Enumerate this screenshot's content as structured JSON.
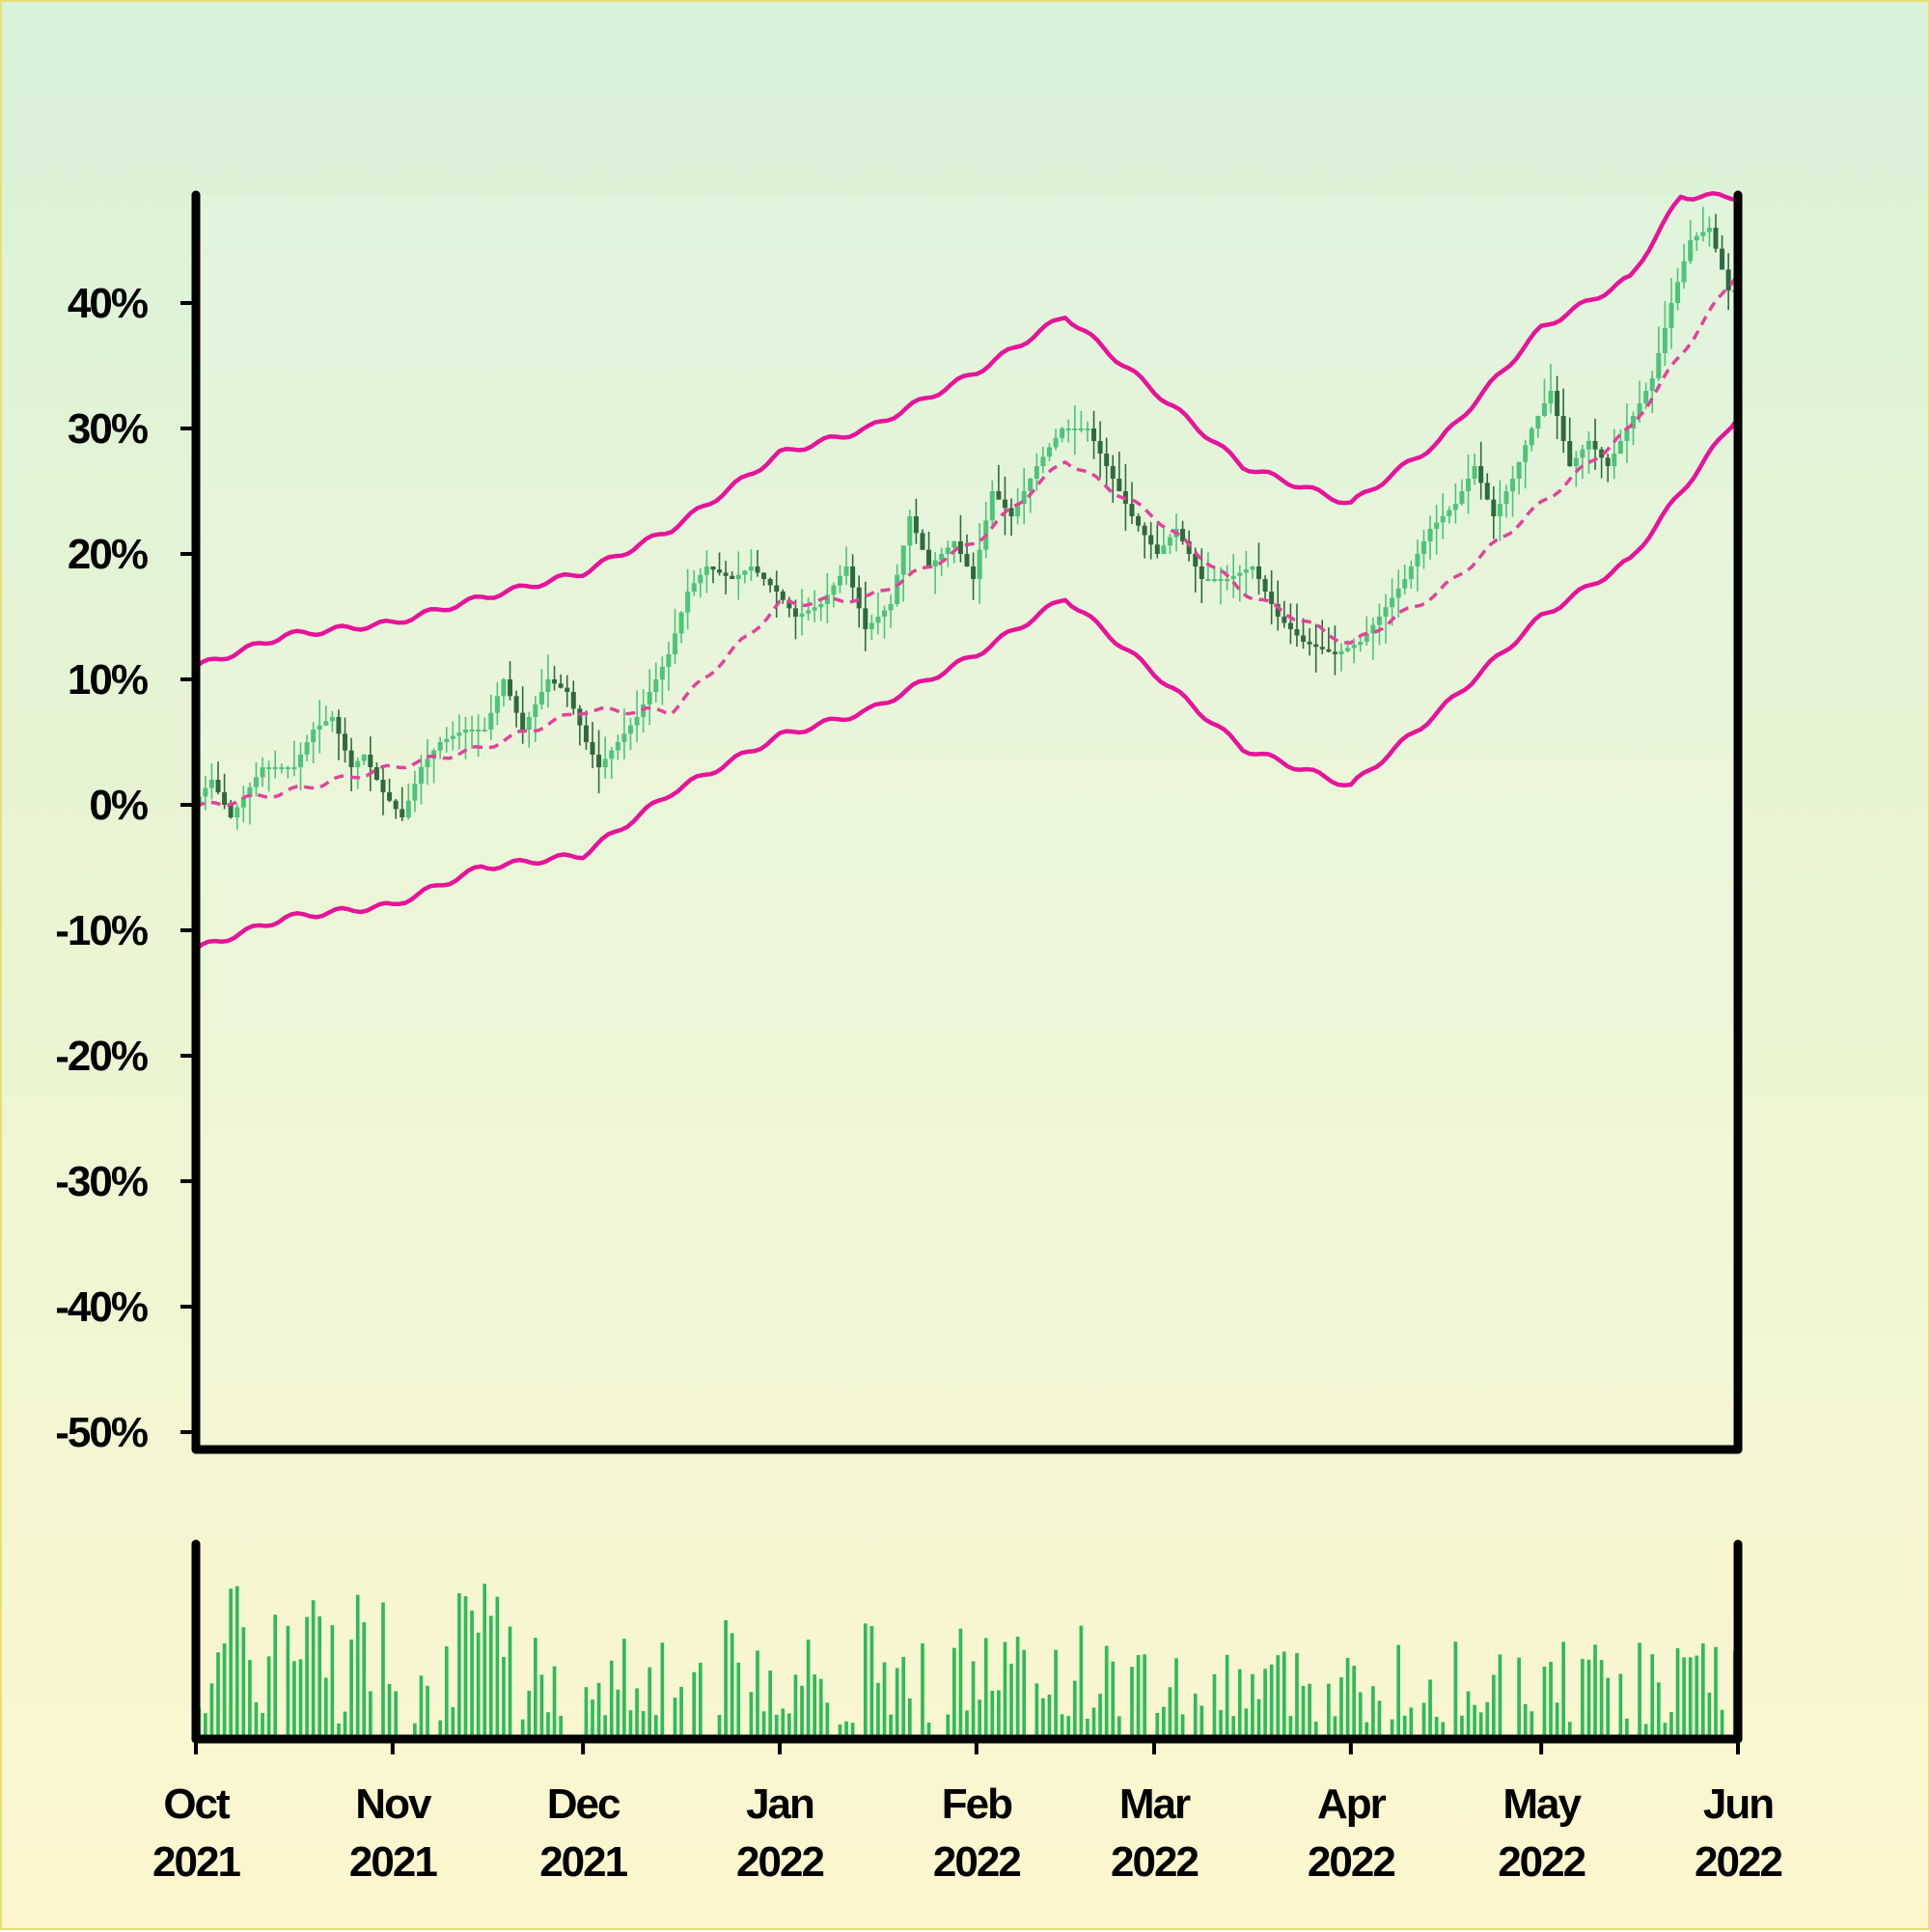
{
  "chart_data": {
    "type": "candlestick",
    "title": "",
    "xlabel": "",
    "ylabel": "",
    "ylim": [
      -50,
      50
    ],
    "y_unit": "%",
    "y_ticks": [
      "40%",
      "30%",
      "20%",
      "10%",
      "0%",
      "-10%",
      "-20%",
      "-30%",
      "-40%",
      "-50%"
    ],
    "y_tick_values": [
      40,
      30,
      20,
      10,
      0,
      -10,
      -20,
      -30,
      -40,
      -50
    ],
    "x_start": "2021-10-01",
    "x_end": "2022-06-01",
    "x_ticks": [
      {
        "date": "2021-10-01",
        "month": "Oct",
        "year": "2021"
      },
      {
        "date": "2021-11-01",
        "month": "Nov",
        "year": "2021"
      },
      {
        "date": "2021-12-01",
        "month": "Dec",
        "year": "2021"
      },
      {
        "date": "2022-01-01",
        "month": "Jan",
        "year": "2022"
      },
      {
        "date": "2022-02-01",
        "month": "Feb",
        "year": "2022"
      },
      {
        "date": "2022-03-01",
        "month": "Mar",
        "year": "2022"
      },
      {
        "date": "2022-04-01",
        "month": "Apr",
        "year": "2022"
      },
      {
        "date": "2022-05-01",
        "month": "May",
        "year": "2022"
      },
      {
        "date": "2022-06-01",
        "month": "Jun",
        "year": "2022"
      }
    ],
    "price_keypoints": [
      [
        "2021-10-01",
        0
      ],
      [
        "2021-10-04",
        2
      ],
      [
        "2021-10-07",
        -1
      ],
      [
        "2021-10-12",
        3
      ],
      [
        "2021-10-17",
        3
      ],
      [
        "2021-10-20",
        6
      ],
      [
        "2021-10-23",
        7
      ],
      [
        "2021-10-26",
        3
      ],
      [
        "2021-10-28",
        4
      ],
      [
        "2021-10-31",
        1
      ],
      [
        "2021-11-03",
        -1
      ],
      [
        "2021-11-06",
        3
      ],
      [
        "2021-11-09",
        5
      ],
      [
        "2021-11-13",
        6
      ],
      [
        "2021-11-16",
        6
      ],
      [
        "2021-11-19",
        10
      ],
      [
        "2021-11-22",
        6
      ],
      [
        "2021-11-26",
        10
      ],
      [
        "2021-11-29",
        9
      ],
      [
        "2021-12-02",
        5
      ],
      [
        "2021-12-04",
        3
      ],
      [
        "2021-12-07",
        5
      ],
      [
        "2021-12-10",
        7
      ],
      [
        "2021-12-15",
        12
      ],
      [
        "2021-12-18",
        17
      ],
      [
        "2021-12-21",
        19
      ],
      [
        "2021-12-25",
        18
      ],
      [
        "2021-12-28",
        19
      ],
      [
        "2022-01-01",
        17
      ],
      [
        "2022-01-04",
        15
      ],
      [
        "2022-01-08",
        16
      ],
      [
        "2022-01-12",
        19
      ],
      [
        "2022-01-15",
        14
      ],
      [
        "2022-01-19",
        16
      ],
      [
        "2022-01-22",
        23
      ],
      [
        "2022-01-25",
        19
      ],
      [
        "2022-01-29",
        21
      ],
      [
        "2022-02-01",
        18
      ],
      [
        "2022-02-04",
        25
      ],
      [
        "2022-02-07",
        23
      ],
      [
        "2022-02-11",
        27
      ],
      [
        "2022-02-15",
        30
      ],
      [
        "2022-02-19",
        30
      ],
      [
        "2022-02-22",
        27
      ],
      [
        "2022-02-26",
        23
      ],
      [
        "2022-03-02",
        20
      ],
      [
        "2022-03-05",
        22
      ],
      [
        "2022-03-09",
        18
      ],
      [
        "2022-03-13",
        18
      ],
      [
        "2022-03-17",
        19
      ],
      [
        "2022-03-21",
        15
      ],
      [
        "2022-03-25",
        13
      ],
      [
        "2022-03-30",
        12
      ],
      [
        "2022-04-03",
        13
      ],
      [
        "2022-04-06",
        15
      ],
      [
        "2022-04-10",
        18
      ],
      [
        "2022-04-14",
        22
      ],
      [
        "2022-04-18",
        24
      ],
      [
        "2022-04-21",
        27
      ],
      [
        "2022-04-24",
        23
      ],
      [
        "2022-04-27",
        26
      ],
      [
        "2022-04-30",
        30
      ],
      [
        "2022-05-03",
        33
      ],
      [
        "2022-05-06",
        27
      ],
      [
        "2022-05-09",
        29
      ],
      [
        "2022-05-12",
        27
      ],
      [
        "2022-05-15",
        30
      ],
      [
        "2022-05-19",
        34
      ],
      [
        "2022-05-22",
        40
      ],
      [
        "2022-05-25",
        45
      ],
      [
        "2022-05-28",
        46
      ],
      [
        "2022-05-31",
        41
      ],
      [
        "2022-06-01",
        41
      ]
    ],
    "series": [
      {
        "name": "",
        "kind": "candles",
        "color_up": "#4cc47a",
        "color_down": "#2f6a3e"
      },
      {
        "name": "",
        "kind": "moving_average",
        "style": "dashed",
        "color": "#e0449a",
        "keypoints": [
          [
            "2021-10-01",
            -0.2
          ],
          [
            "2021-10-15",
            1
          ],
          [
            "2021-11-01",
            3
          ],
          [
            "2021-11-15",
            4.5
          ],
          [
            "2021-12-01",
            7.5
          ],
          [
            "2021-12-15",
            7.5
          ],
          [
            "2022-01-01",
            16
          ],
          [
            "2022-01-15",
            16.5
          ],
          [
            "2022-02-01",
            21
          ],
          [
            "2022-02-15",
            27.5
          ],
          [
            "2022-03-01",
            23
          ],
          [
            "2022-03-15",
            17
          ],
          [
            "2022-04-01",
            12.8
          ],
          [
            "2022-04-15",
            17
          ],
          [
            "2022-05-01",
            24
          ],
          [
            "2022-05-15",
            30
          ],
          [
            "2022-06-01",
            42.5
          ]
        ]
      },
      {
        "name": "",
        "kind": "upper_band",
        "style": "solid",
        "color": "#e6149a",
        "keypoints": [
          [
            "2021-10-01",
            11
          ],
          [
            "2021-10-15",
            13.5
          ],
          [
            "2021-11-01",
            14.5
          ],
          [
            "2021-11-15",
            16.5
          ],
          [
            "2021-12-01",
            18.5
          ],
          [
            "2021-12-15",
            22
          ],
          [
            "2022-01-01",
            28
          ],
          [
            "2022-01-15",
            30
          ],
          [
            "2022-02-01",
            34.5
          ],
          [
            "2022-02-15",
            39
          ],
          [
            "2022-03-01",
            33
          ],
          [
            "2022-03-15",
            27
          ],
          [
            "2022-04-01",
            24
          ],
          [
            "2022-04-15",
            29
          ],
          [
            "2022-05-01",
            38
          ],
          [
            "2022-05-15",
            42
          ],
          [
            "2022-05-23",
            48.5
          ],
          [
            "2022-06-01",
            48.5
          ]
        ]
      },
      {
        "name": "",
        "kind": "lower_band",
        "style": "solid",
        "color": "#e6149a",
        "keypoints": [
          [
            "2021-10-01",
            -11.5
          ],
          [
            "2021-10-15",
            -9
          ],
          [
            "2021-11-01",
            -8
          ],
          [
            "2021-11-15",
            -5
          ],
          [
            "2021-12-01",
            -4
          ],
          [
            "2021-12-15",
            1
          ],
          [
            "2022-01-01",
            5.5
          ],
          [
            "2022-01-15",
            7.5
          ],
          [
            "2022-02-01",
            12
          ],
          [
            "2022-02-15",
            16.5
          ],
          [
            "2022-03-01",
            10.5
          ],
          [
            "2022-03-15",
            4.5
          ],
          [
            "2022-04-01",
            1.5
          ],
          [
            "2022-04-15",
            7.5
          ],
          [
            "2022-05-01",
            15
          ],
          [
            "2022-05-15",
            19.5
          ],
          [
            "2022-06-01",
            31
          ]
        ]
      }
    ],
    "volume": {
      "color": "#2dbb5a",
      "note": "relative daily volume bars, no scale shown"
    },
    "grid": false,
    "legend": "none"
  },
  "colors": {
    "background_top": "#d9f2d9",
    "background_bottom": "#fdf6cf",
    "band": "#e6149a",
    "ma": "#e0449a",
    "candle_up": "#4cc47a",
    "candle_down": "#2f6a3e",
    "volume": "#2dbb5a",
    "axis": "#000000"
  }
}
